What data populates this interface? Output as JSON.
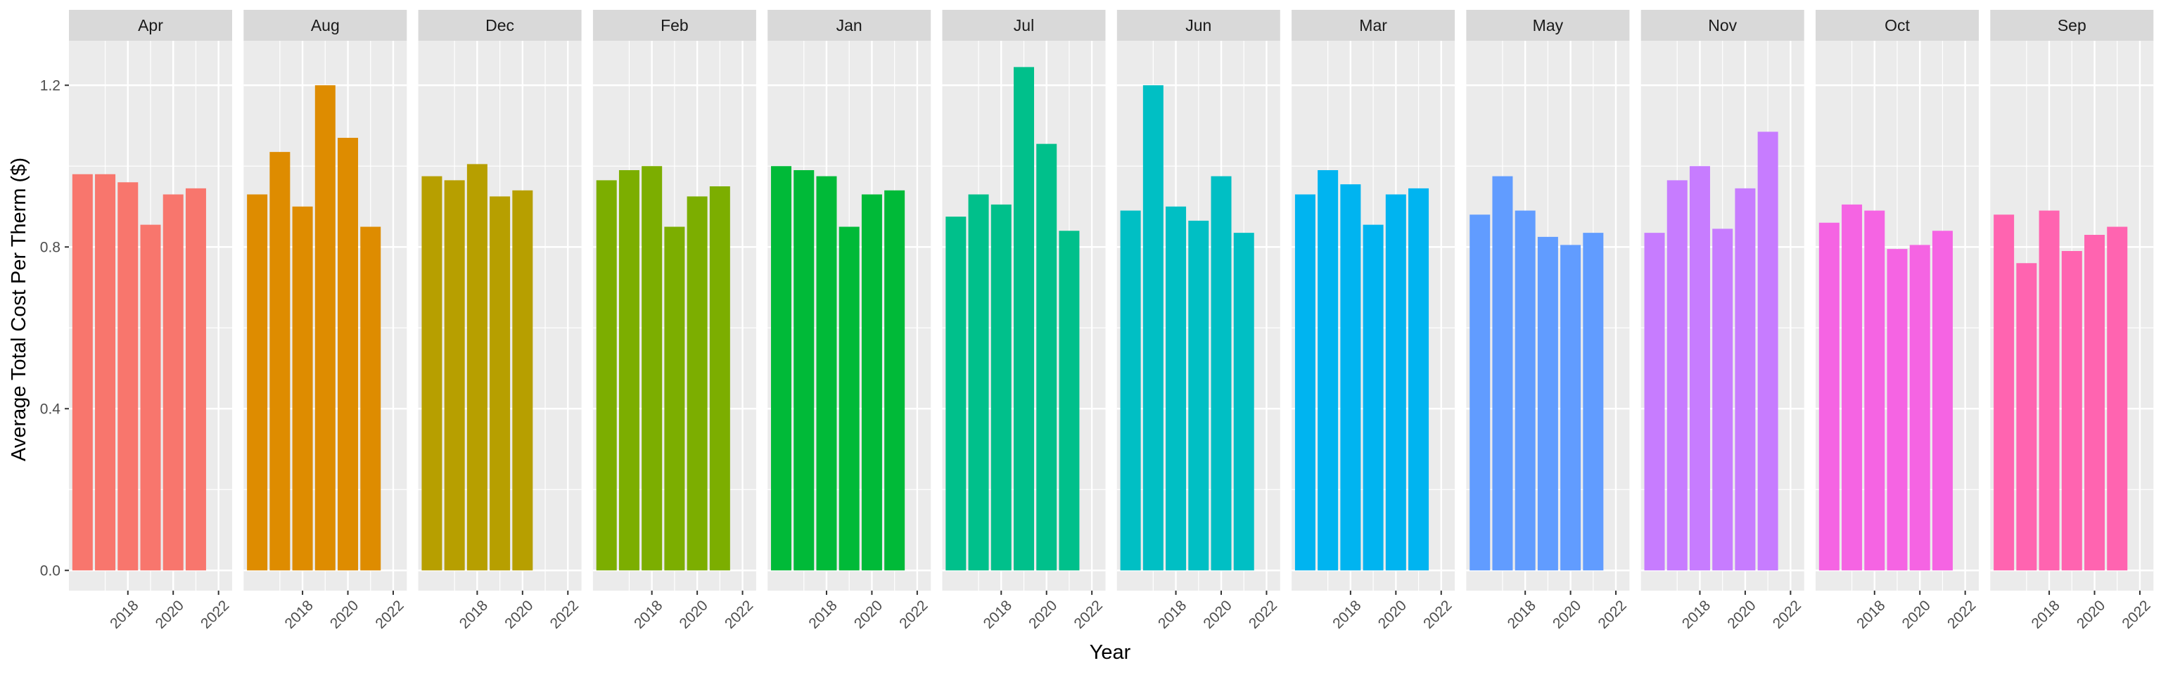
{
  "chart_data": {
    "type": "bar",
    "facet_by": "month",
    "xlabel": "Year",
    "ylabel": "Average Total Cost Per Therm ($)",
    "ylim": [
      -0.05,
      1.31
    ],
    "xlim": [
      2015.4,
      2022.6
    ],
    "y_ticks": [
      0.0,
      0.4,
      0.8,
      1.2
    ],
    "y_tick_labels": [
      "0.0",
      "0.4",
      "0.8",
      "1.2"
    ],
    "x_ticks": [
      2018,
      2020,
      2022
    ],
    "x_tick_labels": [
      "2018",
      "2020",
      "2022"
    ],
    "grid": true,
    "legend": "none",
    "panel_background": "#EBEBEB",
    "strip_background": "#D9D9D9",
    "years": [
      2016,
      2017,
      2018,
      2019,
      2020,
      2021,
      2022
    ],
    "facets": [
      {
        "name": "Apr",
        "color": "#F8766D",
        "values": [
          0.98,
          0.98,
          0.96,
          0.855,
          0.93,
          0.945,
          null
        ]
      },
      {
        "name": "Aug",
        "color": "#DE8C00",
        "values": [
          0.93,
          1.035,
          0.9,
          1.2,
          1.07,
          0.85,
          null
        ]
      },
      {
        "name": "Dec",
        "color": "#B79F00",
        "values": [
          0.975,
          0.965,
          1.005,
          0.925,
          0.94,
          null,
          null
        ]
      },
      {
        "name": "Feb",
        "color": "#7CAE00",
        "values": [
          0.965,
          0.99,
          1.0,
          0.85,
          0.925,
          0.95,
          null
        ]
      },
      {
        "name": "Jan",
        "color": "#00BA38",
        "values": [
          1.0,
          0.99,
          0.975,
          0.85,
          0.93,
          0.94,
          null
        ]
      },
      {
        "name": "Jul",
        "color": "#00C08B",
        "values": [
          0.875,
          0.93,
          0.905,
          1.245,
          1.055,
          0.84,
          null
        ]
      },
      {
        "name": "Jun",
        "color": "#00BFC4",
        "values": [
          0.89,
          1.2,
          0.9,
          0.865,
          0.975,
          0.835,
          null
        ]
      },
      {
        "name": "Mar",
        "color": "#00B4F0",
        "values": [
          0.93,
          0.99,
          0.955,
          0.855,
          0.93,
          0.945,
          null
        ]
      },
      {
        "name": "May",
        "color": "#619CFF",
        "values": [
          0.88,
          0.975,
          0.89,
          0.825,
          0.805,
          0.835,
          null
        ]
      },
      {
        "name": "Nov",
        "color": "#C77CFF",
        "values": [
          0.835,
          0.965,
          1.0,
          0.845,
          0.945,
          1.085,
          null
        ]
      },
      {
        "name": "Oct",
        "color": "#F564E3",
        "values": [
          0.86,
          0.905,
          0.89,
          0.795,
          0.805,
          0.84,
          null
        ]
      },
      {
        "name": "Sep",
        "color": "#FF64B0",
        "values": [
          0.88,
          0.76,
          0.89,
          0.79,
          0.83,
          0.85,
          null
        ]
      }
    ]
  }
}
